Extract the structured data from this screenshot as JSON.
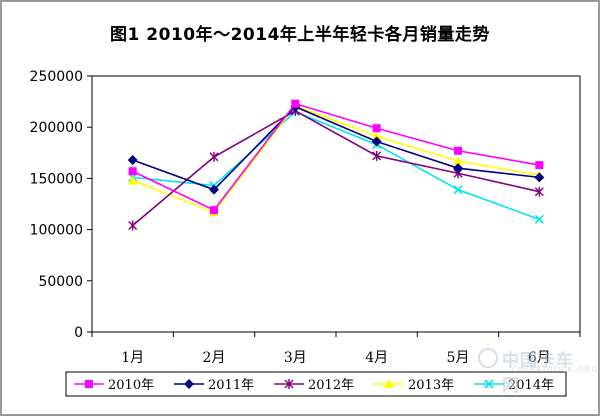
{
  "title": "图1   2010年～2014年上半年轻卡各月销量走势",
  "watermark": {
    "text": "中国卡车网",
    "sub": "CHINATRUCK.ORG"
  },
  "chart_data": {
    "type": "line",
    "categories": [
      "1月",
      "2月",
      "3月",
      "4月",
      "5月",
      "6月"
    ],
    "ylim": [
      0,
      250000
    ],
    "yticks": [
      0,
      50000,
      100000,
      150000,
      200000,
      250000
    ],
    "grid": false,
    "legend": "bottom",
    "series": [
      {
        "name": "2010年",
        "color": "#ff00ff",
        "marker": "square",
        "values": [
          157000,
          119000,
          223000,
          199000,
          177000,
          163000
        ]
      },
      {
        "name": "2011年",
        "color": "#000080",
        "marker": "diamond",
        "values": [
          168000,
          139000,
          220000,
          186000,
          160000,
          151000
        ]
      },
      {
        "name": "2012年",
        "color": "#800080",
        "marker": "star",
        "values": [
          104000,
          171000,
          216000,
          172000,
          155000,
          137000
        ]
      },
      {
        "name": "2013年",
        "color": "#ffff00",
        "marker": "triangle",
        "values": [
          148000,
          117000,
          221000,
          191000,
          167000,
          153000
        ]
      },
      {
        "name": "2014年",
        "color": "#00e5ee",
        "marker": "x",
        "values": [
          151000,
          143000,
          215000,
          183000,
          139000,
          110000
        ]
      }
    ]
  }
}
